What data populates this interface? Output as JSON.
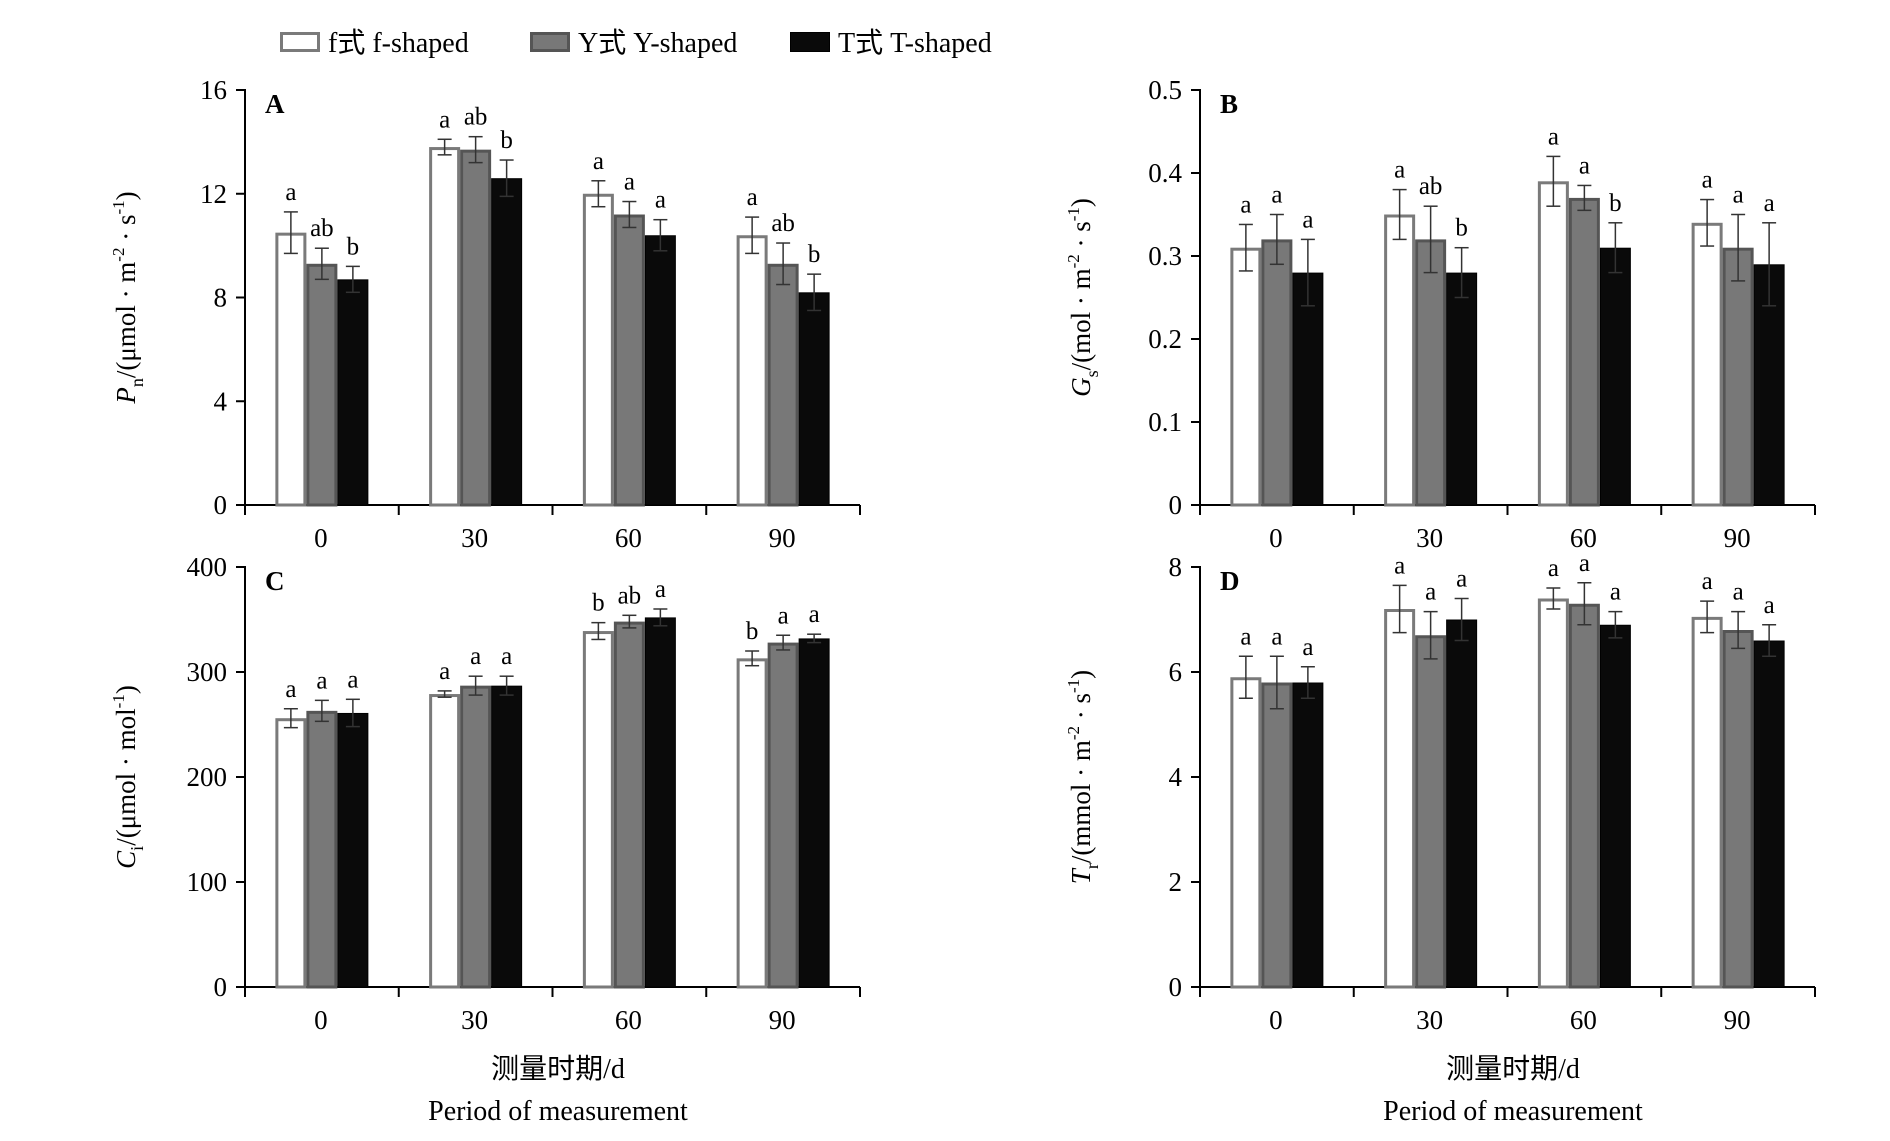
{
  "colors": {
    "f_shaped": "#ffffff",
    "Y_shaped": "#787878",
    "T_shaped": "#0a0a0a",
    "f_border": "#7a7a7a",
    "Y_border": "#555555",
    "T_border": "#000000",
    "axis": "#000000"
  },
  "legend": [
    {
      "label": "f式 f-shaped",
      "color_key": "f_shaped"
    },
    {
      "label": "Y式 Y-shaped",
      "color_key": "Y_shaped"
    },
    {
      "label": "T式 T-shaped",
      "color_key": "T_shaped"
    }
  ],
  "x_axis": {
    "title_cn": "测量时期/d",
    "title_en": "Period of measurement"
  },
  "chart_data": [
    {
      "type": "bar",
      "panel": "A",
      "categories": [
        "0",
        "30",
        "60",
        "90"
      ],
      "ylim": [
        0,
        16
      ],
      "yticks": [
        0,
        4,
        8,
        12,
        16
      ],
      "ytick_labels": [
        "0",
        "4",
        "8",
        "12",
        "16"
      ],
      "ylabel": "Pn/(μmol · m-2 · s-1)",
      "ylabel_main": "P",
      "ylabel_sub": "n",
      "ylabel_unit_a": "/(μmol · m",
      "ylabel_unit_b": " · s",
      "ylabel_sup1": "-2",
      "ylabel_sup2": "-1",
      "ylabel_close": ")",
      "series": [
        {
          "name": "f式 f-shaped",
          "values": [
            10.5,
            13.8,
            12.0,
            10.4
          ],
          "errors": [
            0.8,
            0.3,
            0.5,
            0.7
          ],
          "labels": [
            "a",
            "a",
            "a",
            "a"
          ]
        },
        {
          "name": "Y式 Y-shaped",
          "values": [
            9.3,
            13.7,
            11.2,
            9.3
          ],
          "errors": [
            0.6,
            0.5,
            0.5,
            0.8
          ],
          "labels": [
            "ab",
            "ab",
            "a",
            "ab"
          ]
        },
        {
          "name": "T式 T-shaped",
          "values": [
            8.7,
            12.6,
            10.4,
            8.2
          ],
          "errors": [
            0.5,
            0.7,
            0.6,
            0.7
          ],
          "labels": [
            "b",
            "b",
            "a",
            "b"
          ]
        }
      ]
    },
    {
      "type": "bar",
      "panel": "B",
      "categories": [
        "0",
        "30",
        "60",
        "90"
      ],
      "ylim": [
        0,
        0.5
      ],
      "yticks": [
        0,
        0.1,
        0.2,
        0.3,
        0.4,
        0.5
      ],
      "ytick_labels": [
        "0",
        "0.1",
        "0.2",
        "0.3",
        "0.4",
        "0.5"
      ],
      "ylabel": "Gs/(mol · m-2 · s-1)",
      "ylabel_main": "G",
      "ylabel_sub": "s",
      "ylabel_unit_a": "/(mol · m",
      "ylabel_unit_b": " · s",
      "ylabel_sup1": "-2",
      "ylabel_sup2": "-1",
      "ylabel_close": ")",
      "series": [
        {
          "name": "f式 f-shaped",
          "values": [
            0.31,
            0.35,
            0.39,
            0.34
          ],
          "errors": [
            0.028,
            0.03,
            0.03,
            0.028
          ],
          "labels": [
            "a",
            "a",
            "a",
            "a"
          ]
        },
        {
          "name": "Y式 Y-shaped",
          "values": [
            0.32,
            0.32,
            0.37,
            0.31
          ],
          "errors": [
            0.03,
            0.04,
            0.015,
            0.04
          ],
          "labels": [
            "a",
            "ab",
            "a",
            "a"
          ]
        },
        {
          "name": "T式 T-shaped",
          "values": [
            0.28,
            0.28,
            0.31,
            0.29
          ],
          "errors": [
            0.04,
            0.03,
            0.03,
            0.05
          ],
          "labels": [
            "a",
            "b",
            "b",
            "a"
          ]
        }
      ]
    },
    {
      "type": "bar",
      "panel": "C",
      "categories": [
        "0",
        "30",
        "60",
        "90"
      ],
      "ylim": [
        0,
        400
      ],
      "yticks": [
        0,
        100,
        200,
        300,
        400
      ],
      "ytick_labels": [
        "0",
        "100",
        "200",
        "300",
        "400"
      ],
      "ylabel": "Ci/(μmol · mol-1)",
      "ylabel_main": "C",
      "ylabel_sub": "i",
      "ylabel_unit_a": "/(μmol · mol",
      "ylabel_unit_b": "",
      "ylabel_sup1": "-1",
      "ylabel_sup2": "",
      "ylabel_close": ")",
      "series": [
        {
          "name": "f式 f-shaped",
          "values": [
            256,
            279,
            339,
            313
          ],
          "errors": [
            9,
            3,
            8,
            7
          ],
          "labels": [
            "a",
            "a",
            "b",
            "b"
          ]
        },
        {
          "name": "Y式 Y-shaped",
          "values": [
            263,
            287,
            348,
            328
          ],
          "errors": [
            10,
            9,
            6,
            7
          ],
          "labels": [
            "a",
            "a",
            "ab",
            "a"
          ]
        },
        {
          "name": "T式 T-shaped",
          "values": [
            261,
            287,
            352,
            332
          ],
          "errors": [
            13,
            9,
            8,
            4
          ],
          "labels": [
            "a",
            "a",
            "a",
            "a"
          ]
        }
      ]
    },
    {
      "type": "bar",
      "panel": "D",
      "categories": [
        "0",
        "30",
        "60",
        "90"
      ],
      "ylim": [
        0,
        8
      ],
      "yticks": [
        0,
        2,
        4,
        6,
        8
      ],
      "ytick_labels": [
        "0",
        "2",
        "4",
        "6",
        "8"
      ],
      "ylabel": "Tr/(mmol · m-2 · s-1)",
      "ylabel_main": "T",
      "ylabel_sub": "r",
      "ylabel_unit_a": "/(mmol · m",
      "ylabel_unit_b": " · s",
      "ylabel_sup1": "-2",
      "ylabel_sup2": "-1",
      "ylabel_close": ")",
      "series": [
        {
          "name": "f式 f-shaped",
          "values": [
            5.9,
            7.2,
            7.4,
            7.05
          ],
          "errors": [
            0.4,
            0.45,
            0.2,
            0.3
          ],
          "labels": [
            "a",
            "a",
            "a",
            "a"
          ]
        },
        {
          "name": "Y式 Y-shaped",
          "values": [
            5.8,
            6.7,
            7.3,
            6.8
          ],
          "errors": [
            0.5,
            0.45,
            0.4,
            0.35
          ],
          "labels": [
            "a",
            "a",
            "a",
            "a"
          ]
        },
        {
          "name": "T式 T-shaped",
          "values": [
            5.8,
            7.0,
            6.9,
            6.6
          ],
          "errors": [
            0.3,
            0.4,
            0.25,
            0.3
          ],
          "labels": [
            "a",
            "a",
            "a",
            "a"
          ]
        }
      ]
    }
  ]
}
